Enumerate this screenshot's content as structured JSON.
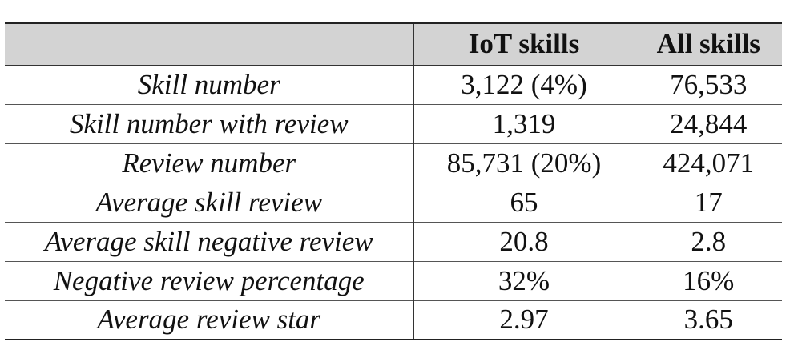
{
  "table": {
    "headers": [
      "",
      "IoT skills",
      "All skills"
    ],
    "rows": [
      {
        "label": "Skill number",
        "iot": "3,122 (4%)",
        "all": "76,533"
      },
      {
        "label": "Skill number with review",
        "iot": "1,319",
        "all": "24,844"
      },
      {
        "label": "Review number",
        "iot": "85,731 (20%)",
        "all": "424,071"
      },
      {
        "label": "Average skill review",
        "iot": "65",
        "all": "17"
      },
      {
        "label": "Average skill negative review",
        "iot": "20.8",
        "all": "2.8"
      },
      {
        "label": "Negative review percentage",
        "iot": "32%",
        "all": "16%"
      },
      {
        "label": "Average review star",
        "iot": "2.97",
        "all": "3.65"
      }
    ]
  },
  "colors": {
    "header_background": "#d3d3d3",
    "text": "#111111",
    "rule": "#222222"
  }
}
